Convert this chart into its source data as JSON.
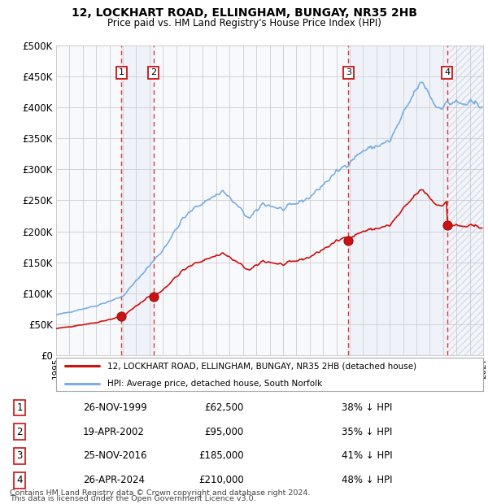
{
  "title_line1": "12, LOCKHART ROAD, ELLINGHAM, BUNGAY, NR35 2HB",
  "title_line2": "Price paid vs. HM Land Registry's House Price Index (HPI)",
  "ylim": [
    0,
    500000
  ],
  "yticks": [
    0,
    50000,
    100000,
    150000,
    200000,
    250000,
    300000,
    350000,
    400000,
    450000,
    500000
  ],
  "ytick_labels": [
    "£0",
    "£50K",
    "£100K",
    "£150K",
    "£200K",
    "£250K",
    "£300K",
    "£350K",
    "£400K",
    "£450K",
    "£500K"
  ],
  "xlim_start": 1995.0,
  "xlim_end": 2027.0,
  "hpi_color": "#7aade0",
  "price_color": "#cc1111",
  "background_color": "#ffffff",
  "grid_color": "#cccccc",
  "transactions": [
    {
      "label": "1",
      "date_str": "26-NOV-1999",
      "x": 1999.9,
      "price": 62500,
      "pct": "38%"
    },
    {
      "label": "2",
      "date_str": "19-APR-2002",
      "x": 2002.3,
      "price": 95000,
      "pct": "35%"
    },
    {
      "label": "3",
      "date_str": "25-NOV-2016",
      "x": 2016.9,
      "price": 185000,
      "pct": "41%"
    },
    {
      "label": "4",
      "date_str": "26-APR-2024",
      "x": 2024.3,
      "price": 210000,
      "pct": "48%"
    }
  ],
  "legend_property_label": "12, LOCKHART ROAD, ELLINGHAM, BUNGAY, NR35 2HB (detached house)",
  "legend_hpi_label": "HPI: Average price, detached house, South Norfolk",
  "footer_line1": "Contains HM Land Registry data © Crown copyright and database right 2024.",
  "footer_line2": "This data is licensed under the Open Government Licence v3.0.",
  "table_rows": [
    [
      "1",
      "26-NOV-1999",
      "£62,500",
      "38% ↓ HPI"
    ],
    [
      "2",
      "19-APR-2002",
      "£95,000",
      "35% ↓ HPI"
    ],
    [
      "3",
      "25-NOV-2016",
      "£185,000",
      "41% ↓ HPI"
    ],
    [
      "4",
      "26-APR-2024",
      "£210,000",
      "48% ↓ HPI"
    ]
  ]
}
